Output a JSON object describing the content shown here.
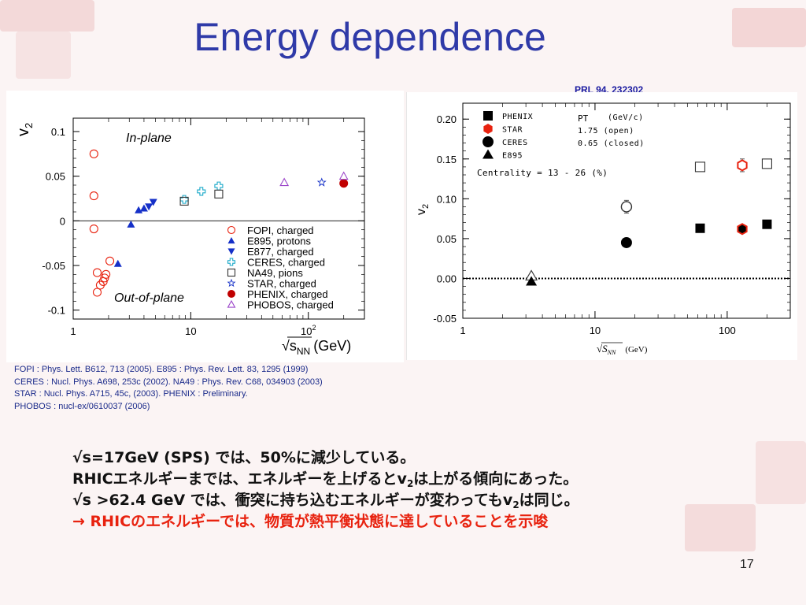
{
  "slide": {
    "title": "Energy dependence",
    "reference_link": "PRL 94, 232302",
    "page_number": "17"
  },
  "references": [
    "FOPI : Phys. Lett. B612, 713 (2005).   E895 : Phys. Rev. Lett. 83, 1295 (1999)",
    "CERES : Nucl. Phys. A698, 253c (2002).   NA49 : Phys. Rev. C68, 034903 (2003)",
    "STAR : Nucl. Phys. A715, 45c, (2003).   PHENIX : Preliminary.",
    "PHOBOS : nucl-ex/0610037 (2006)"
  ],
  "bullets": {
    "b1": "√s=17GeV (SPS) では、50%に減少している。",
    "b2_pre": "RHICエネルギーまでは、エネルギーを上げるとv",
    "b2_sub": "2",
    "b2_post": "は上がる傾向にあった。",
    "b3_pre": "√s >62.4 GeV では、衝突に持ち込むエネルギーが変わってもv",
    "b3_sub": "2",
    "b3_post": "は同じ。",
    "b4": "→ RHICのエネルギーでは、物質が熱平衡状態に達していることを示唆"
  },
  "colors": {
    "title": "#2f3aa8",
    "bullet_red": "#e8220f",
    "fopi": "#e8220f",
    "e895": "#1530c8",
    "ceres": "#19a9c9",
    "phenix_left": "#c00000",
    "phobos": "#9b45c9"
  },
  "chart_data": [
    {
      "type": "scatter",
      "title": "",
      "xlabel_main": "√s",
      "xlabel_sub": "NN",
      "xlabel_unit": "(GeV)",
      "ylabel_main": "v",
      "ylabel_sub": "2",
      "x_scale": "log",
      "xlim": [
        1,
        300
      ],
      "ylim": [
        -0.11,
        0.115
      ],
      "x_ticks": [
        {
          "value": 1,
          "label": "1"
        },
        {
          "value": 10,
          "label": "10"
        },
        {
          "value": 100,
          "label": "10",
          "sup": "2"
        }
      ],
      "y_ticks": [
        {
          "value": 0.1,
          "label": "0.1"
        },
        {
          "value": 0.05,
          "label": "0.05"
        },
        {
          "value": 0,
          "label": "0"
        },
        {
          "value": -0.05,
          "label": "-0.05"
        },
        {
          "value": -0.1,
          "label": "-0.1"
        }
      ],
      "annotations": [
        "In-plane",
        "Out-of-plane"
      ],
      "zero_line": true,
      "legend_position": "bottom-right",
      "series": [
        {
          "name": "FOPI, charged",
          "marker": "circle-open",
          "color": "#e8220f",
          "points": [
            [
              1.5,
              0.075
            ],
            [
              1.5,
              0.028
            ],
            [
              1.5,
              -0.009
            ],
            [
              1.6,
              -0.058
            ],
            [
              1.6,
              -0.08
            ],
            [
              1.7,
              -0.072
            ],
            [
              1.8,
              -0.068
            ],
            [
              1.85,
              -0.064
            ],
            [
              1.9,
              -0.06
            ],
            [
              2.05,
              -0.045
            ]
          ]
        },
        {
          "name": "E895, protons",
          "marker": "triangle-up",
          "color": "#1530c8",
          "points": [
            [
              2.4,
              -0.048
            ],
            [
              3.1,
              -0.004
            ],
            [
              3.6,
              0.012
            ],
            [
              4.0,
              0.014
            ]
          ]
        },
        {
          "name": "E877, charged",
          "marker": "triangle-down",
          "color": "#1530c8",
          "points": [
            [
              4.4,
              0.016
            ],
            [
              4.8,
              0.021
            ]
          ]
        },
        {
          "name": "CERES, charged",
          "marker": "cross-open",
          "color": "#19a9c9",
          "points": [
            [
              8.8,
              0.024
            ],
            [
              12.3,
              0.033
            ],
            [
              17.3,
              0.039
            ]
          ]
        },
        {
          "name": "NA49, pions",
          "marker": "square-open",
          "color": "#333333",
          "points": [
            [
              8.8,
              0.022
            ],
            [
              17.3,
              0.03
            ]
          ]
        },
        {
          "name": "STAR, charged",
          "marker": "star-open",
          "color": "#1530c8",
          "points": [
            [
              130,
              0.043
            ]
          ]
        },
        {
          "name": "PHENIX, charged",
          "marker": "circle-filled",
          "color": "#c00000",
          "points": [
            [
              200,
              0.042
            ]
          ]
        },
        {
          "name": "PHOBOS, charged",
          "marker": "triangle-up-open",
          "color": "#9b45c9",
          "points": [
            [
              62.4,
              0.043
            ],
            [
              200,
              0.05
            ]
          ]
        }
      ]
    },
    {
      "type": "scatter",
      "title": "",
      "xlabel_main": "√S",
      "xlabel_sub": "NN",
      "xlabel_unit": "(GeV)",
      "ylabel_main": "v",
      "ylabel_sub": "2",
      "x_scale": "log",
      "xlim": [
        1,
        300
      ],
      "ylim": [
        -0.05,
        0.22
      ],
      "x_ticks": [
        {
          "value": 1,
          "label": "1"
        },
        {
          "value": 10,
          "label": "10"
        },
        {
          "value": 100,
          "label": "100"
        }
      ],
      "y_ticks": [
        {
          "value": 0.2,
          "label": "0.20"
        },
        {
          "value": 0.15,
          "label": "0.15"
        },
        {
          "value": 0.1,
          "label": "0.10"
        },
        {
          "value": 0.05,
          "label": "0.05"
        },
        {
          "value": 0,
          "label": "0.00"
        },
        {
          "value": -0.05,
          "label": "-0.05"
        }
      ],
      "zero_line_dotted": true,
      "legend_position": "top-left",
      "legend_header": {
        "pt": "PT",
        "unit": "(GeV/c)",
        "val1": "1.75  (open)",
        "val2": "0.65  (closed)"
      },
      "legend_note": "Centrality = 13 - 26 (%)",
      "series": [
        {
          "name": "PHENIX",
          "marker": "square",
          "points_open": [
            [
              62.4,
              0.14
            ],
            [
              200,
              0.144
            ]
          ],
          "points_closed": [
            [
              62.4,
              0.063
            ],
            [
              200,
              0.068
            ]
          ]
        },
        {
          "name": "STAR",
          "marker": "hexagon",
          "points_open": [
            [
              130,
              0.142
            ]
          ],
          "points_closed": [
            [
              130,
              0.062
            ]
          ]
        },
        {
          "name": "CERES",
          "marker": "circle",
          "points_open": [
            [
              17.3,
              0.09
            ]
          ],
          "points_closed": [
            [
              17.3,
              0.045
            ]
          ]
        },
        {
          "name": "E895",
          "marker": "triangle",
          "points_open": [
            [
              3.3,
              0.003
            ]
          ],
          "points_closed": [
            [
              3.3,
              -0.004
            ]
          ]
        }
      ]
    }
  ]
}
